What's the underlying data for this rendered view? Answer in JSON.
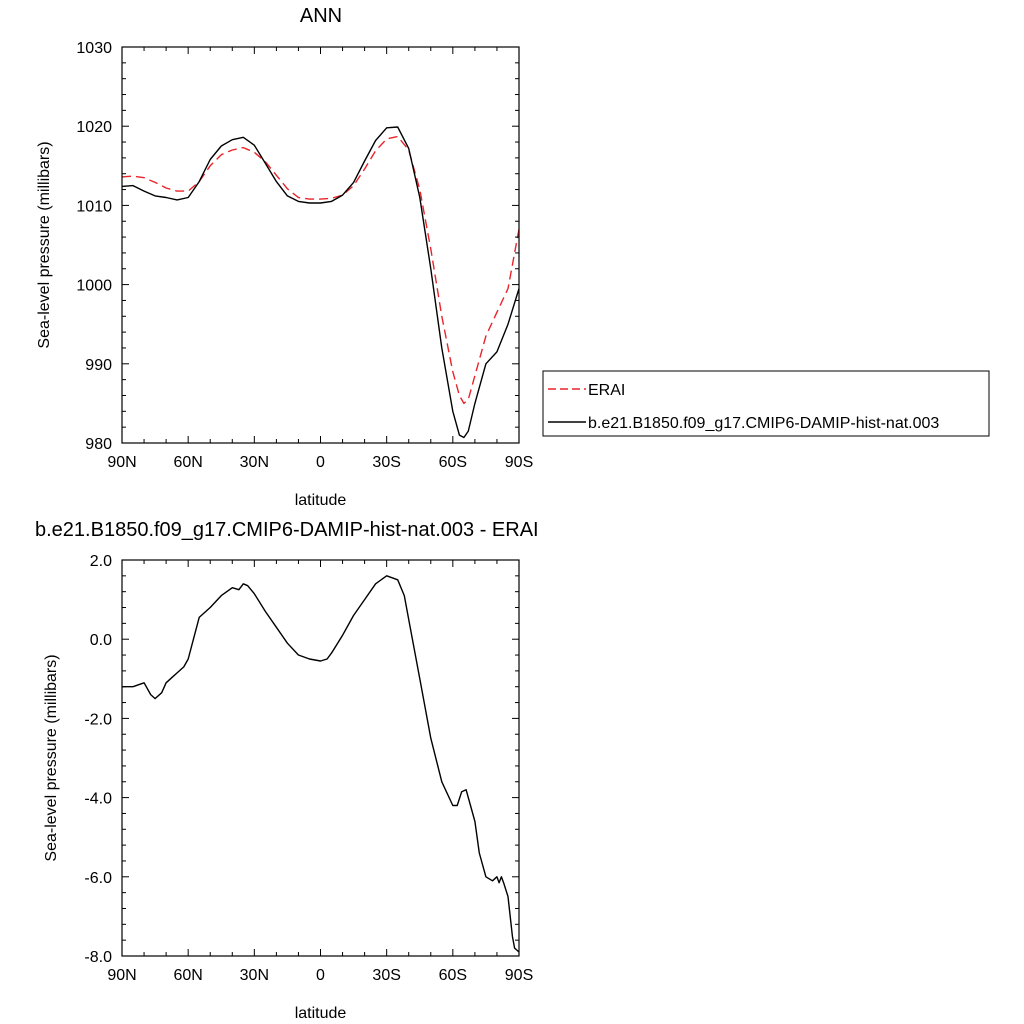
{
  "chart_data": [
    {
      "type": "line",
      "title": "ANN",
      "xlabel": "latitude",
      "ylabel": "Sea-level pressure (millibars)",
      "xlim": [
        90,
        -90
      ],
      "ylim": [
        980,
        1030
      ],
      "x_ticks": [
        90,
        60,
        30,
        0,
        -30,
        -60,
        -90
      ],
      "x_tick_labels": [
        "90N",
        "60N",
        "30N",
        "0",
        "30S",
        "60S",
        "90S"
      ],
      "y_ticks": [
        980,
        990,
        1000,
        1010,
        1020,
        1030
      ],
      "y_tick_labels": [
        "980",
        "990",
        "1000",
        "1010",
        "1020",
        "1030"
      ],
      "legend": {
        "placement": "right",
        "entries": [
          {
            "label": "ERAI",
            "color": "#e8242a",
            "dash": true
          },
          {
            "label": "b.e21.B1850.f09_g17.CMIP6-DAMIP-hist-nat.003",
            "color": "#000000",
            "dash": false
          }
        ]
      },
      "series": [
        {
          "name": "ERAI",
          "color": "#e8242a",
          "dash": true,
          "x": [
            90,
            85,
            80,
            75,
            70,
            65,
            60,
            55,
            50,
            45,
            40,
            35,
            30,
            25,
            20,
            15,
            10,
            5,
            0,
            -5,
            -10,
            -15,
            -20,
            -25,
            -30,
            -35,
            -40,
            -45,
            -50,
            -55,
            -60,
            -63,
            -65,
            -67,
            -70,
            -75,
            -80,
            -85,
            -90
          ],
          "y": [
            1013.6,
            1013.7,
            1013.5,
            1012.9,
            1012.2,
            1011.8,
            1011.8,
            1013.0,
            1015.0,
            1016.4,
            1017.0,
            1017.3,
            1016.7,
            1015.5,
            1013.8,
            1012.1,
            1011.0,
            1010.8,
            1010.8,
            1010.9,
            1011.3,
            1012.5,
            1014.6,
            1016.9,
            1018.4,
            1018.7,
            1017.0,
            1012.0,
            1004.5,
            996.0,
            989.0,
            986.0,
            985.0,
            985.5,
            988.5,
            993.5,
            996.5,
            999.5,
            1007.0
          ]
        },
        {
          "name": "b.e21.B1850.f09_g17.CMIP6-DAMIP-hist-nat.003",
          "color": "#000000",
          "dash": false,
          "x": [
            90,
            85,
            80,
            75,
            70,
            65,
            60,
            55,
            50,
            45,
            40,
            35,
            30,
            25,
            20,
            15,
            10,
            5,
            0,
            -5,
            -10,
            -15,
            -20,
            -25,
            -30,
            -35,
            -40,
            -45,
            -50,
            -55,
            -60,
            -63,
            -65,
            -67,
            -70,
            -75,
            -80,
            -85,
            -90
          ],
          "y": [
            1012.4,
            1012.5,
            1011.8,
            1011.2,
            1011.0,
            1010.7,
            1011.0,
            1013.0,
            1015.8,
            1017.5,
            1018.3,
            1018.6,
            1017.6,
            1015.3,
            1013.0,
            1011.2,
            1010.5,
            1010.3,
            1010.3,
            1010.5,
            1011.3,
            1012.9,
            1015.6,
            1018.2,
            1019.8,
            1019.9,
            1017.2,
            1011.0,
            1002.0,
            992.0,
            984.0,
            981.0,
            980.7,
            981.5,
            985.0,
            990.0,
            991.5,
            995.0,
            999.5
          ]
        }
      ]
    },
    {
      "type": "line",
      "title": "b.e21.B1850.f09_g17.CMIP6-DAMIP-hist-nat.003 - ERAI",
      "xlabel": "latitude",
      "ylabel": "Sea-level pressure (millibars)",
      "xlim": [
        90,
        -90
      ],
      "ylim": [
        -8.0,
        2.0
      ],
      "x_ticks": [
        90,
        60,
        30,
        0,
        -30,
        -60,
        -90
      ],
      "x_tick_labels": [
        "90N",
        "60N",
        "30N",
        "0",
        "30S",
        "60S",
        "90S"
      ],
      "y_ticks": [
        -8.0,
        -6.0,
        -4.0,
        -2.0,
        0.0,
        2.0
      ],
      "y_tick_labels": [
        "-8.0",
        "-6.0",
        "-4.0",
        "-2.0",
        "0.0",
        "2.0"
      ],
      "series": [
        {
          "color": "#000000",
          "dash": false,
          "x": [
            90,
            85,
            80,
            77,
            75,
            72,
            70,
            67,
            65,
            62,
            60,
            55,
            50,
            45,
            40,
            37,
            35,
            33,
            30,
            25,
            20,
            15,
            10,
            5,
            0,
            -3,
            -5,
            -10,
            -15,
            -20,
            -25,
            -30,
            -35,
            -38,
            -40,
            -45,
            -50,
            -55,
            -60,
            -62,
            -64,
            -66,
            -68,
            -70,
            -72,
            -75,
            -78,
            -80,
            -81,
            -82,
            -83,
            -85,
            -87,
            -88,
            -90
          ],
          "y": [
            -1.2,
            -1.2,
            -1.1,
            -1.4,
            -1.5,
            -1.35,
            -1.1,
            -0.95,
            -0.85,
            -0.7,
            -0.5,
            0.55,
            0.8,
            1.1,
            1.3,
            1.25,
            1.4,
            1.35,
            1.15,
            0.7,
            0.3,
            -0.1,
            -0.4,
            -0.5,
            -0.55,
            -0.5,
            -0.35,
            0.1,
            0.6,
            1.0,
            1.4,
            1.6,
            1.5,
            1.1,
            0.5,
            -1.0,
            -2.5,
            -3.6,
            -4.2,
            -4.2,
            -3.85,
            -3.8,
            -4.2,
            -4.6,
            -5.4,
            -6.0,
            -6.1,
            -6.0,
            -6.15,
            -6.0,
            -6.15,
            -6.5,
            -7.5,
            -7.8,
            -7.9
          ]
        }
      ]
    }
  ]
}
